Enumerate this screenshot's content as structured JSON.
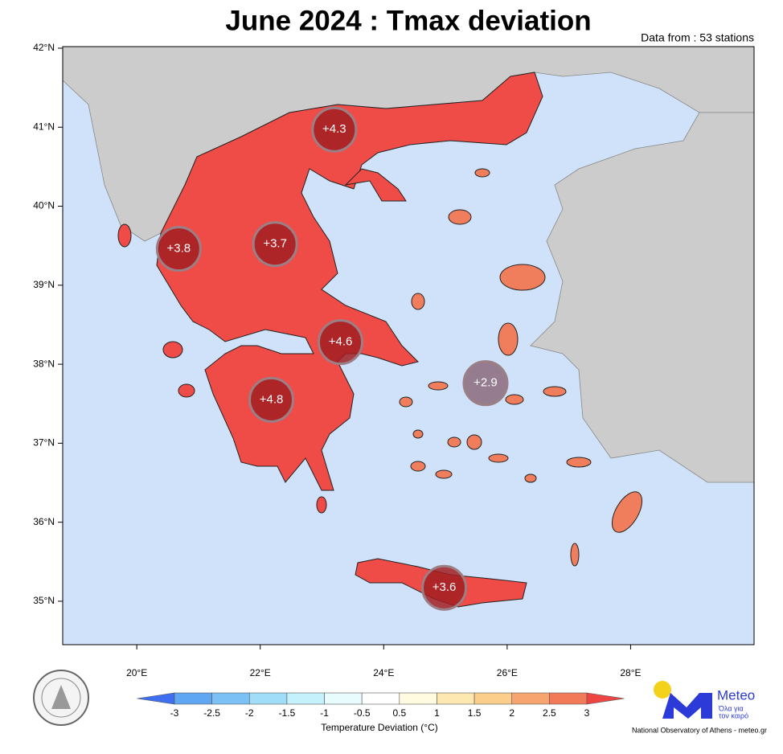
{
  "map": {
    "title": "June 2024 : Tmax deviation",
    "subtitle": "Data from : 53 stations",
    "lon_range": [
      18.8,
      30.0
    ],
    "lat_range": [
      34.45,
      42.02
    ],
    "lat_ticks": [
      {
        "value": 42,
        "label": "42°N"
      },
      {
        "value": 41,
        "label": "41°N"
      },
      {
        "value": 40,
        "label": "40°N"
      },
      {
        "value": 39,
        "label": "39°N"
      },
      {
        "value": 38,
        "label": "38°N"
      },
      {
        "value": 37,
        "label": "37°N"
      },
      {
        "value": 36,
        "label": "36°N"
      },
      {
        "value": 35,
        "label": "35°N"
      }
    ],
    "lon_ticks": [
      {
        "value": 20,
        "label": "20°E"
      },
      {
        "value": 22,
        "label": "22°E"
      },
      {
        "value": 24,
        "label": "24°E"
      },
      {
        "value": 26,
        "label": "26°E"
      },
      {
        "value": 28,
        "label": "28°E"
      }
    ],
    "regions": [
      {
        "label": "+4.3",
        "value": 4.3,
        "lon": 23.2,
        "lat": 40.97,
        "color": "#a11f22"
      },
      {
        "label": "+3.8",
        "value": 3.8,
        "lon": 20.68,
        "lat": 39.46,
        "color": "#a11f22"
      },
      {
        "label": "+3.7",
        "value": 3.7,
        "lon": 22.24,
        "lat": 39.52,
        "color": "#a11f22"
      },
      {
        "label": "+4.6",
        "value": 4.6,
        "lon": 23.3,
        "lat": 38.28,
        "color": "#a11f22"
      },
      {
        "label": "+4.8",
        "value": 4.8,
        "lon": 22.18,
        "lat": 37.55,
        "color": "#a11f22"
      },
      {
        "label": "+2.9",
        "value": 2.9,
        "lon": 25.65,
        "lat": 37.76,
        "color": "#8b6a7c"
      },
      {
        "label": "+3.6",
        "value": 3.6,
        "lon": 24.98,
        "lat": 35.17,
        "color": "#a11f22"
      }
    ],
    "colorbar": {
      "label": "Temperature Deviation (°C)",
      "ticks": [
        -3,
        -2.5,
        -2,
        -1.5,
        -1,
        -0.5,
        0.5,
        1,
        1.5,
        2,
        2.5,
        3
      ],
      "colors": [
        "#3d6ff0",
        "#5fa6f3",
        "#7cc1f6",
        "#a0ddf8",
        "#c4f1fb",
        "#e8fbfd",
        "#ffffff",
        "#fffbe0",
        "#fde8b2",
        "#fbce8c",
        "#f7a470",
        "#f27a58",
        "#ef4542"
      ]
    },
    "footer": "National Observatory of Athens - meteo.gr",
    "logo": {
      "name": "Meteo",
      "tagline_1": "Όλα για",
      "tagline_2": "τον καιρό"
    }
  }
}
